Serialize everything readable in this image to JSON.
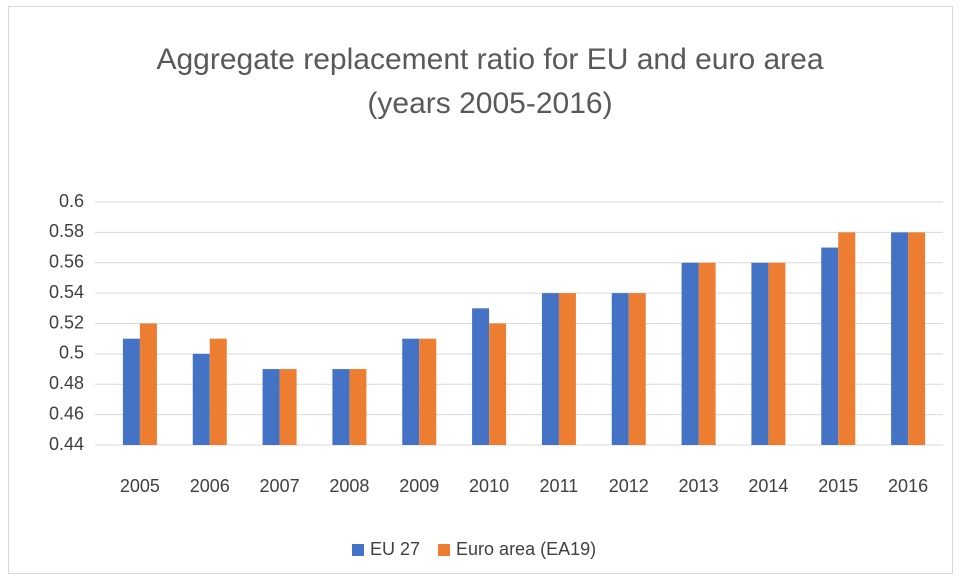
{
  "chart_data": {
    "type": "bar",
    "title": "Aggregate replacement ratio for EU and euro area (years 2005-2016)",
    "categories": [
      "2005",
      "2006",
      "2007",
      "2008",
      "2009",
      "2010",
      "2011",
      "2012",
      "2013",
      "2014",
      "2015",
      "2016"
    ],
    "series": [
      {
        "name": "EU 27",
        "color": "#4472c4",
        "values": [
          0.51,
          0.5,
          0.49,
          0.49,
          0.51,
          0.53,
          0.54,
          0.54,
          0.56,
          0.56,
          0.57,
          0.58
        ]
      },
      {
        "name": "Euro area (EA19)",
        "color": "#ed7d31",
        "values": [
          0.52,
          0.51,
          0.49,
          0.49,
          0.51,
          0.52,
          0.54,
          0.54,
          0.56,
          0.56,
          0.58,
          0.58
        ]
      }
    ],
    "ylim": [
      0.44,
      0.6
    ],
    "yticks": [
      0.44,
      0.46,
      0.48,
      0.5,
      0.52,
      0.54,
      0.56,
      0.58,
      0.6
    ],
    "grid": true,
    "legend": "bottom"
  }
}
